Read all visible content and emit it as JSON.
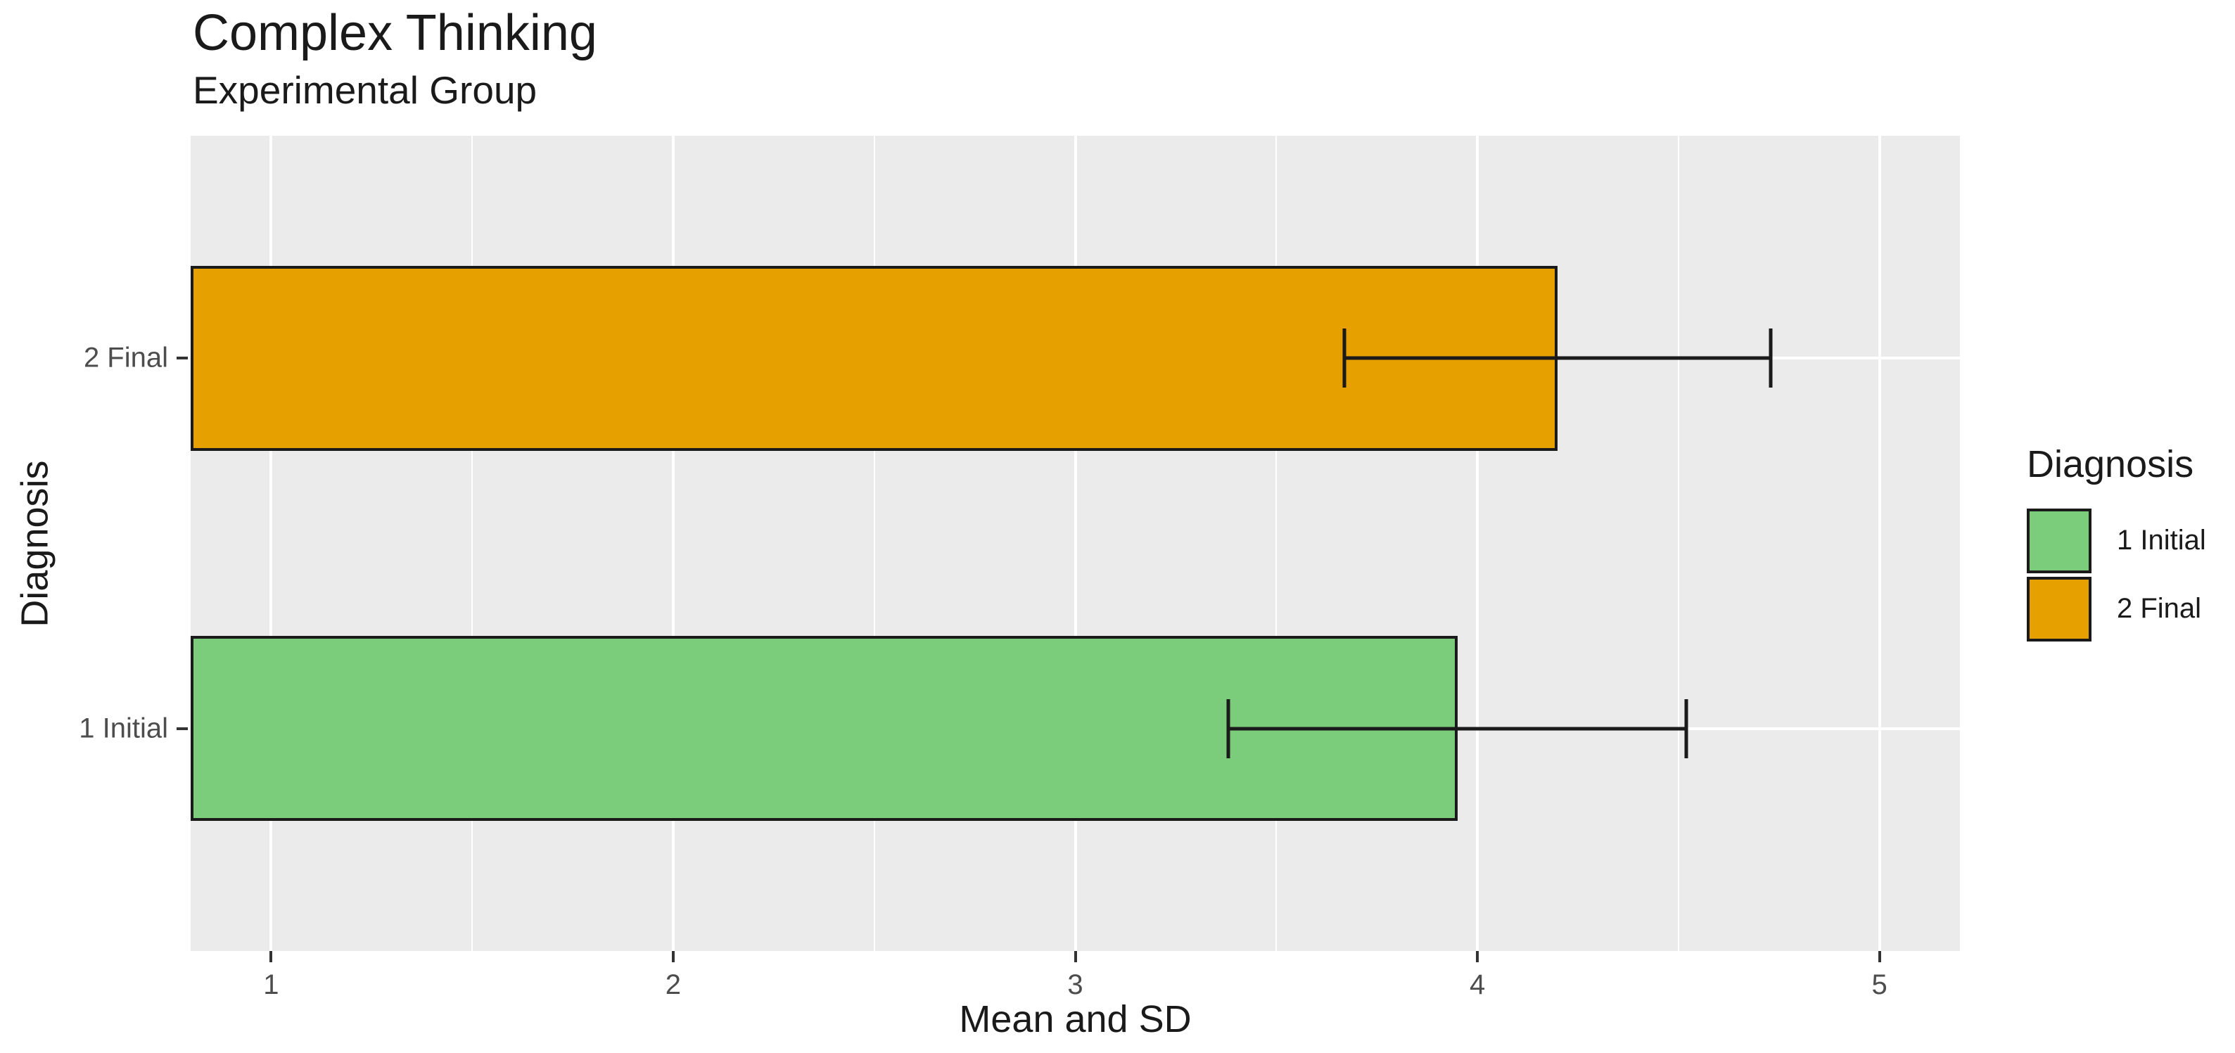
{
  "chart_data": {
    "type": "bar",
    "orientation": "horizontal",
    "title": "Complex Thinking",
    "subtitle": "Experimental Group",
    "xlabel": "Mean and SD",
    "ylabel": "Diagnosis",
    "xlim": [
      0.8,
      5.2
    ],
    "xticks": [
      1,
      2,
      3,
      4,
      5
    ],
    "x_minor_gridlines": [
      1.5,
      2.5,
      3.5,
      4.5
    ],
    "grid": "on",
    "panel_background": "#EBEBEB",
    "gridline_color": "#FFFFFF",
    "bar_border_color": "#1A1A1A",
    "tick_label_color": "#4D4D4D",
    "categories": [
      "2 Final",
      "1 Initial"
    ],
    "bars": [
      {
        "category": "2 Final",
        "mean": 4.2,
        "sd": 0.53,
        "error_low": 3.67,
        "error_high": 4.73,
        "color": "#E6A000"
      },
      {
        "category": "1 Initial",
        "mean": 3.95,
        "sd": 0.57,
        "error_low": 3.38,
        "error_high": 4.52,
        "color": "#7BCC7B"
      }
    ],
    "legend": {
      "title": "Diagnosis",
      "position": "right",
      "entries": [
        {
          "label": "1 Initial",
          "color": "#7BCC7B"
        },
        {
          "label": "2 Final",
          "color": "#E6A000"
        }
      ]
    }
  }
}
